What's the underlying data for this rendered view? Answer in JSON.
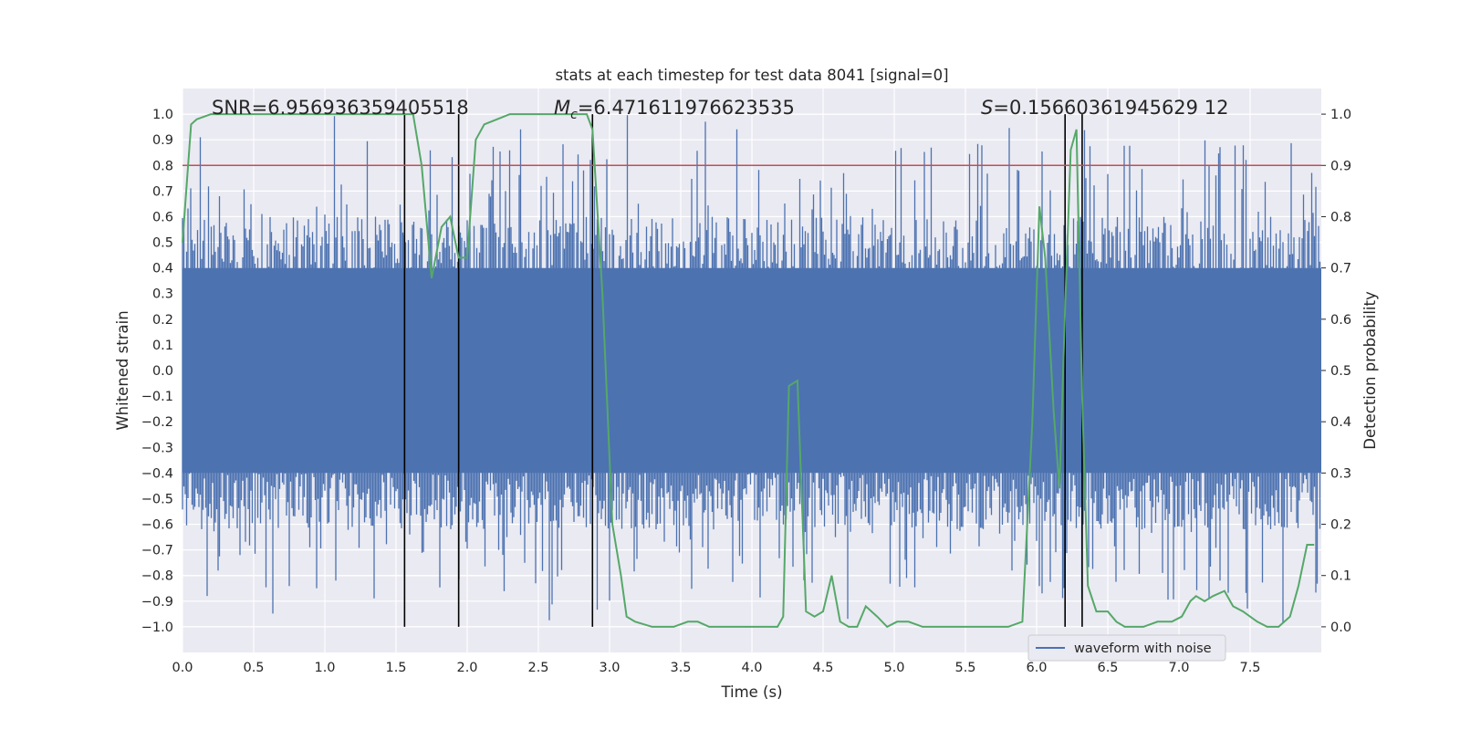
{
  "chart_data": {
    "type": "line",
    "title": "stats at each timestep for test data 8041 [signal=0]",
    "xlabel": "Time (s)",
    "ylabel_left": "Whitened strain",
    "ylabel_right": "Detection probability",
    "xlim": [
      0.0,
      8.0
    ],
    "ylim_left": [
      -1.1,
      1.1
    ],
    "ylim_right": [
      -0.05,
      1.05
    ],
    "x_ticks": [
      "0.0",
      "0.5",
      "1.0",
      "1.5",
      "2.0",
      "2.5",
      "3.0",
      "3.5",
      "4.0",
      "4.5",
      "5.0",
      "5.5",
      "6.0",
      "6.5",
      "7.0",
      "7.5"
    ],
    "y_left_ticks": [
      "1.0",
      "0.9",
      "0.8",
      "0.7",
      "0.6",
      "0.5",
      "0.4",
      "0.3",
      "0.2",
      "0.1",
      "0.0",
      "−0.1",
      "−0.2",
      "−0.3",
      "−0.4",
      "−0.5",
      "−0.6",
      "−0.7",
      "−0.8",
      "−0.9",
      "−1.0"
    ],
    "y_right_ticks": [
      "1.0",
      "0.9",
      "0.8",
      "0.7",
      "0.6",
      "0.5",
      "0.4",
      "0.3",
      "0.2",
      "0.1",
      "0.0"
    ],
    "annotations": {
      "snr": "SNR=6.956936359405518",
      "mc_label": "M",
      "mc_sub": "c",
      "mc_value": "=6.471611976623535",
      "s_label": "S",
      "s_value": "=0.15660361945629 12"
    },
    "threshold": {
      "value": 0.9,
      "axis": "right",
      "color": "#c44e52"
    },
    "vertical_markers": [
      1.56,
      1.94,
      2.88,
      6.2,
      6.32
    ],
    "legend": {
      "label": "waveform with noise",
      "position": "lower-right"
    },
    "series": [
      {
        "name": "waveform with noise",
        "axis": "left",
        "color": "#4c72b0",
        "kind": "noise",
        "x_range": [
          0.0,
          8.0
        ],
        "envelope_upper": 0.4,
        "envelope_lower": -0.4,
        "peak_max": 1.0,
        "peak_min": -1.0
      },
      {
        "name": "detection probability",
        "axis": "right",
        "color": "#55a868",
        "x": [
          0.0,
          0.06,
          0.1,
          0.2,
          0.4,
          0.8,
          1.2,
          1.5,
          1.56,
          1.62,
          1.68,
          1.75,
          1.82,
          1.88,
          1.94,
          2.0,
          2.06,
          2.12,
          2.3,
          2.6,
          2.84,
          2.88,
          2.95,
          3.02,
          3.08,
          3.12,
          3.18,
          3.3,
          3.45,
          3.55,
          3.62,
          3.7,
          3.9,
          4.12,
          4.18,
          4.22,
          4.26,
          4.32,
          4.38,
          4.44,
          4.5,
          4.56,
          4.62,
          4.68,
          4.74,
          4.8,
          4.88,
          4.95,
          5.02,
          5.1,
          5.2,
          5.32,
          5.45,
          5.6,
          5.8,
          5.9,
          5.97,
          6.02,
          6.06,
          6.12,
          6.16,
          6.2,
          6.24,
          6.28,
          6.32,
          6.36,
          6.42,
          6.5,
          6.56,
          6.62,
          6.68,
          6.75,
          6.85,
          6.95,
          7.02,
          7.08,
          7.12,
          7.18,
          7.24,
          7.32,
          7.38,
          7.45,
          7.55,
          7.62,
          7.7,
          7.78,
          7.84,
          7.9,
          7.95
        ],
        "y": [
          0.75,
          0.98,
          0.99,
          1.0,
          1.0,
          1.0,
          1.0,
          1.0,
          1.0,
          1.0,
          0.9,
          0.68,
          0.78,
          0.8,
          0.72,
          0.72,
          0.95,
          0.98,
          1.0,
          1.0,
          1.0,
          0.97,
          0.65,
          0.2,
          0.1,
          0.02,
          0.01,
          0.0,
          0.0,
          0.01,
          0.01,
          0.0,
          0.0,
          0.0,
          0.0,
          0.02,
          0.47,
          0.48,
          0.03,
          0.02,
          0.03,
          0.1,
          0.01,
          0.0,
          0.0,
          0.04,
          0.02,
          0.0,
          0.01,
          0.01,
          0.0,
          0.0,
          0.0,
          0.0,
          0.0,
          0.01,
          0.4,
          0.82,
          0.72,
          0.42,
          0.27,
          0.62,
          0.93,
          0.97,
          0.45,
          0.08,
          0.03,
          0.03,
          0.01,
          0.0,
          0.0,
          0.0,
          0.01,
          0.01,
          0.02,
          0.05,
          0.06,
          0.05,
          0.06,
          0.07,
          0.04,
          0.03,
          0.01,
          0.0,
          0.0,
          0.02,
          0.08,
          0.16,
          0.16
        ]
      }
    ]
  }
}
